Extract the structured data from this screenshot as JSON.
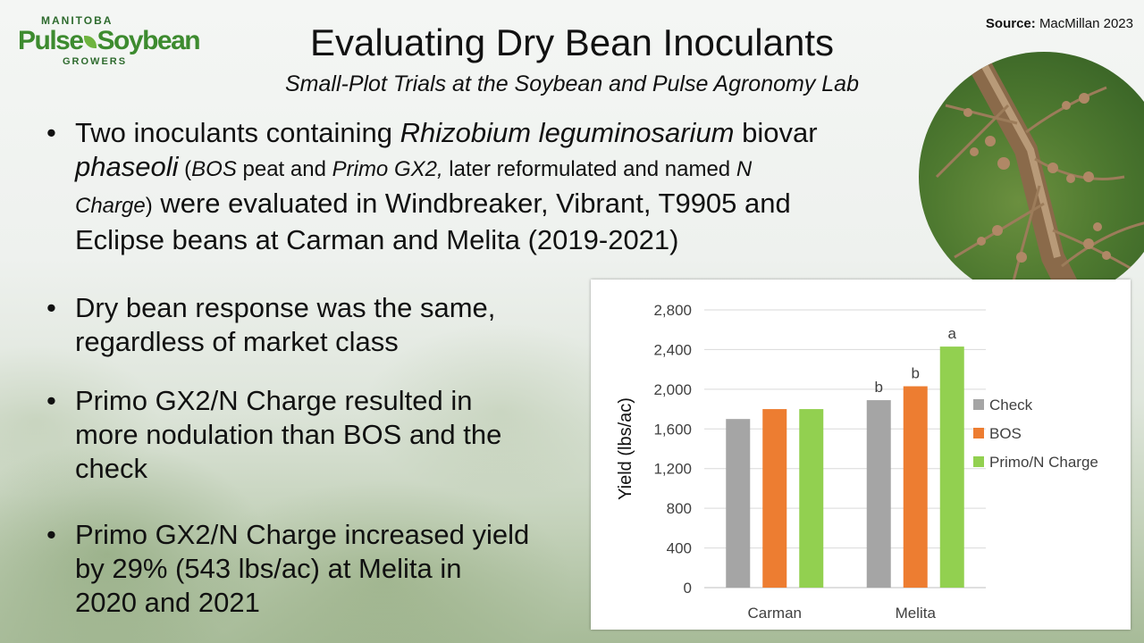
{
  "logo": {
    "top": "MANITOBA",
    "name_left": "Pulse",
    "name_right": "Soybean",
    "bottom": "GROWERS"
  },
  "title": "Evaluating Dry Bean Inoculants",
  "subtitle": "Small-Plot Trials at the Soybean and Pulse Agronomy Lab",
  "source": {
    "label": "Source:",
    "text": "MacMillan 2023"
  },
  "bullets": {
    "b1": {
      "p1": "Two inoculants containing ",
      "i1": "Rhizobium leguminosarium",
      "p2": " biovar",
      "i2": "phaseoli",
      "s1": " (",
      "si1": "BOS",
      "s2": " peat and ",
      "si2": "Primo GX2,",
      "s3": " later reformulated and named ",
      "si3": "N",
      "si4": "Charge",
      "s4": ")",
      "p3": " were evaluated in Windbreaker, Vibrant, T9905 and",
      "p4": "Eclipse beans at Carman and Melita (2019-2021)"
    },
    "b2": {
      "l1": "Dry bean response was the same,",
      "l2": "regardless of market class"
    },
    "b3": {
      "l1": "Primo GX2/N Charge resulted in",
      "l2": "more nodulation than BOS and the",
      "l3": "check"
    },
    "b4": {
      "l1": "Primo GX2/N Charge increased yield",
      "l2": "by 29% (543 lbs/ac) at Melita in",
      "l3": "2020 and 2021"
    }
  },
  "chart_data": {
    "type": "bar",
    "categories": [
      "Carman",
      "Melita"
    ],
    "series": [
      {
        "name": "Check",
        "color": "#a5a5a5",
        "values": [
          1700,
          1890
        ],
        "labels": [
          "",
          "b"
        ]
      },
      {
        "name": "BOS",
        "color": "#ed7d31",
        "values": [
          1800,
          2030
        ],
        "labels": [
          "",
          "b"
        ]
      },
      {
        "name": "Primo/N Charge",
        "color": "#92d050",
        "values": [
          1800,
          2430
        ],
        "labels": [
          "",
          "a"
        ]
      }
    ],
    "ylabel": "Yield (lbs/ac)",
    "xlabel": "",
    "ylim": [
      0,
      2800
    ],
    "yticks": [
      0,
      400,
      800,
      1200,
      1600,
      2000,
      2400,
      2800
    ],
    "ytick_labels": [
      "0",
      "400",
      "800",
      "1,200",
      "1,600",
      "2,000",
      "2,400",
      "2,800"
    ],
    "grid": true,
    "legend": "right"
  }
}
